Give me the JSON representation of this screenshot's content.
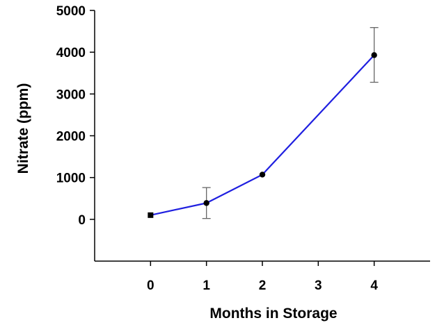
{
  "chart_data": {
    "type": "line",
    "xlabel": "Months in Storage",
    "ylabel": "Nitrate (ppm)",
    "xlim": [
      -1,
      5
    ],
    "ylim": [
      -1000,
      5000
    ],
    "x_ticks": [
      "0",
      "1",
      "2",
      "3",
      "4"
    ],
    "y_ticks": [
      "0",
      "1000",
      "2000",
      "3000",
      "4000",
      "5000"
    ],
    "grid": false,
    "legend": "none",
    "series": [
      {
        "color": "#1f1fe0",
        "points": [
          {
            "x": 0,
            "y": 100,
            "err_low": 100,
            "err_high": 100,
            "marker": "square"
          },
          {
            "x": 1,
            "y": 390,
            "err_low": 20,
            "err_high": 760,
            "marker": "circle"
          },
          {
            "x": 2,
            "y": 1070,
            "err_low": 1070,
            "err_high": 1070,
            "marker": "circle"
          },
          {
            "x": 4,
            "y": 3930,
            "err_low": 3280,
            "err_high": 4590,
            "marker": "circle"
          }
        ]
      }
    ]
  }
}
